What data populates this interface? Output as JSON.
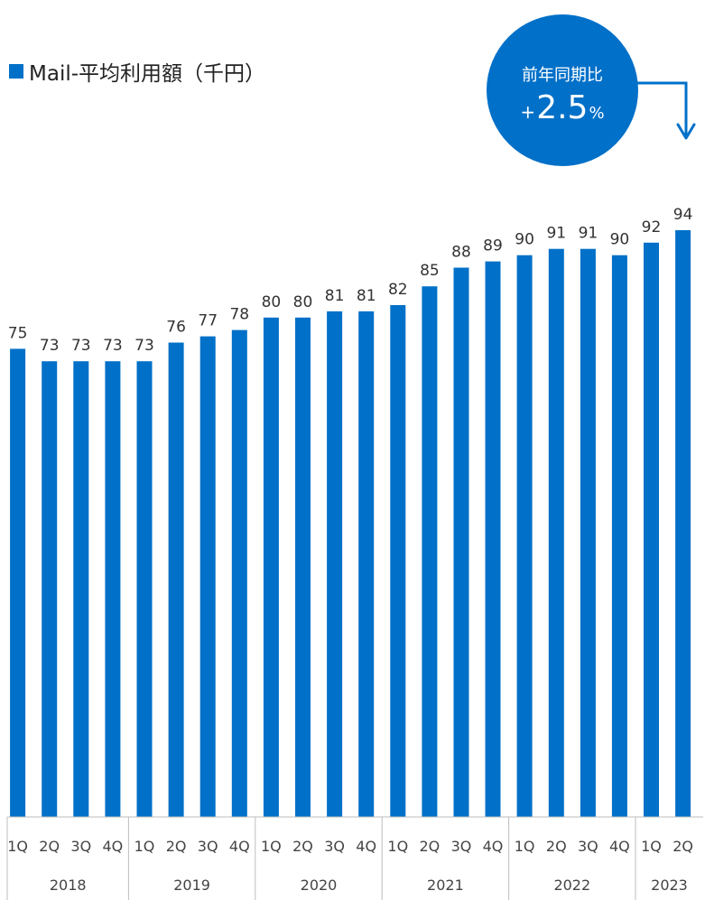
{
  "legend": {
    "label": "Mail-平均利用額（千円）",
    "color": "#0070C8"
  },
  "callout": {
    "title": "前年同期比",
    "sign": "+",
    "value": "2.5",
    "unit": "%",
    "color": "#0070C8"
  },
  "chart_data": {
    "type": "bar",
    "categories": [
      "1Q",
      "2Q",
      "3Q",
      "4Q",
      "1Q",
      "2Q",
      "3Q",
      "4Q",
      "1Q",
      "2Q",
      "3Q",
      "4Q",
      "1Q",
      "2Q",
      "3Q",
      "4Q",
      "1Q",
      "2Q",
      "3Q",
      "4Q",
      "1Q",
      "2Q"
    ],
    "groups": [
      {
        "label": "2018",
        "count": 4
      },
      {
        "label": "2019",
        "count": 4
      },
      {
        "label": "2020",
        "count": 4
      },
      {
        "label": "2021",
        "count": 4
      },
      {
        "label": "2022",
        "count": 4
      },
      {
        "label": "2023",
        "count": 2
      }
    ],
    "series": [
      {
        "name": "Mail-平均利用額（千円）",
        "values": [
          75,
          73,
          73,
          73,
          73,
          76,
          77,
          78,
          80,
          80,
          81,
          81,
          82,
          85,
          88,
          89,
          90,
          91,
          91,
          90,
          92,
          94
        ]
      }
    ],
    "ylim": [
      0,
      94
    ],
    "bar_color": "#0070C8",
    "grid": false
  }
}
